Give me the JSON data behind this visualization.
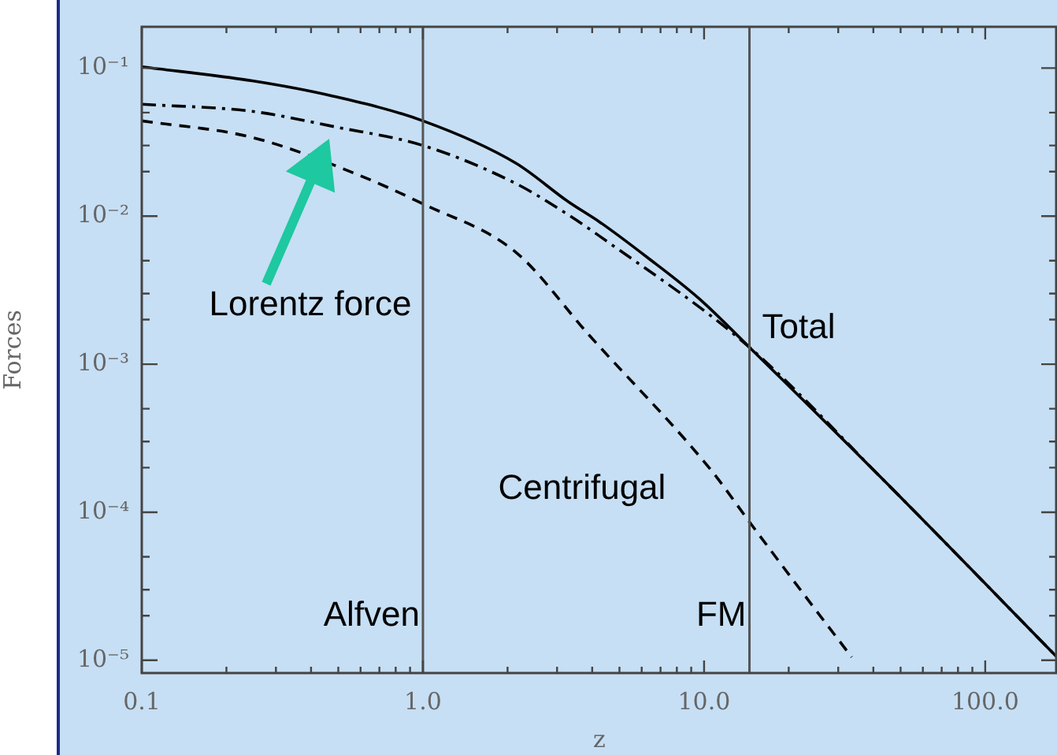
{
  "chart_data": {
    "type": "line",
    "xlabel": "z",
    "ylabel": "Forces",
    "log": "xy",
    "grid": false,
    "legend": false,
    "marker": "none",
    "xlim": [
      0.1,
      180
    ],
    "ylim": [
      8.2e-06,
      0.19
    ],
    "xticks": [
      {
        "value": 0.1,
        "label": "0.1"
      },
      {
        "value": 0.2,
        "label": null
      },
      {
        "value": 0.3,
        "label": null
      },
      {
        "value": 0.4,
        "label": null
      },
      {
        "value": 0.5,
        "label": null
      },
      {
        "value": 0.6,
        "label": null
      },
      {
        "value": 0.7,
        "label": null
      },
      {
        "value": 0.8,
        "label": null
      },
      {
        "value": 0.9,
        "label": null
      },
      {
        "value": 1,
        "label": "1.0"
      },
      {
        "value": 2,
        "label": null
      },
      {
        "value": 3,
        "label": null
      },
      {
        "value": 4,
        "label": null
      },
      {
        "value": 5,
        "label": null
      },
      {
        "value": 6,
        "label": null
      },
      {
        "value": 7,
        "label": null
      },
      {
        "value": 8,
        "label": null
      },
      {
        "value": 9,
        "label": null
      },
      {
        "value": 10,
        "label": "10.0"
      },
      {
        "value": 20,
        "label": null
      },
      {
        "value": 30,
        "label": null
      },
      {
        "value": 40,
        "label": null
      },
      {
        "value": 50,
        "label": null
      },
      {
        "value": 60,
        "label": null
      },
      {
        "value": 70,
        "label": null
      },
      {
        "value": 80,
        "label": null
      },
      {
        "value": 90,
        "label": null
      },
      {
        "value": 100,
        "label": "100.0"
      }
    ],
    "yticks": [
      {
        "value": 1e-05,
        "label": "10⁻⁵"
      },
      {
        "value": 2e-05,
        "label": null
      },
      {
        "value": 3e-05,
        "label": null
      },
      {
        "value": 5e-05,
        "label": null
      },
      {
        "value": 0.0001,
        "label": "10⁻⁴"
      },
      {
        "value": 0.0002,
        "label": null
      },
      {
        "value": 0.0003,
        "label": null
      },
      {
        "value": 0.0005,
        "label": null
      },
      {
        "value": 0.001,
        "label": "10⁻³"
      },
      {
        "value": 0.002,
        "label": null
      },
      {
        "value": 0.003,
        "label": null
      },
      {
        "value": 0.005,
        "label": null
      },
      {
        "value": 0.01,
        "label": "10⁻²"
      },
      {
        "value": 0.02,
        "label": null
      },
      {
        "value": 0.03,
        "label": null
      },
      {
        "value": 0.05,
        "label": null
      },
      {
        "value": 0.1,
        "label": "10⁻¹"
      }
    ],
    "series": [
      {
        "name": "Total",
        "color": "#000000",
        "line_style": "solid",
        "x": [
          0.1,
          0.247,
          0.472,
          1.0,
          2.14,
          3.29,
          4.26,
          6.25,
          9.6,
          14.5,
          43.6,
          180
        ],
        "values": [
          0.102,
          0.082,
          0.065,
          0.044,
          0.0228,
          0.0125,
          0.0091,
          0.0053,
          0.00277,
          0.0013,
          0.000164,
          1.05e-05
        ]
      },
      {
        "color": "#000000",
        "line_style": "dashdot",
        "x": [
          0.1,
          0.247,
          0.49,
          1.0,
          2.14,
          3.29,
          4.26,
          14.5,
          43.6,
          180
        ],
        "values": [
          0.057,
          0.051,
          0.04,
          0.03,
          0.0166,
          0.0102,
          0.0073,
          0.0013,
          0.000164,
          1.05e-05
        ]
      },
      {
        "name": "Centrifugal",
        "color": "#000000",
        "line_style": "dashed",
        "x": [
          0.1,
          0.247,
          0.589,
          1.0,
          2.14,
          3.89,
          10.6,
          14.5,
          22.7,
          33.5
        ],
        "values": [
          0.044,
          0.034,
          0.019,
          0.0121,
          0.0057,
          0.00158,
          0.000192,
          8.6e-05,
          2.77e-05,
          1.05e-05
        ]
      }
    ],
    "ref_lines": [
      {
        "axis": "x",
        "value": 1.0,
        "label": "Alfven",
        "color": "#555555"
      },
      {
        "axis": "x",
        "value": 14.5,
        "label": "FM",
        "color": "#555555"
      }
    ],
    "annotations": [
      "Lorentz force"
    ]
  }
}
